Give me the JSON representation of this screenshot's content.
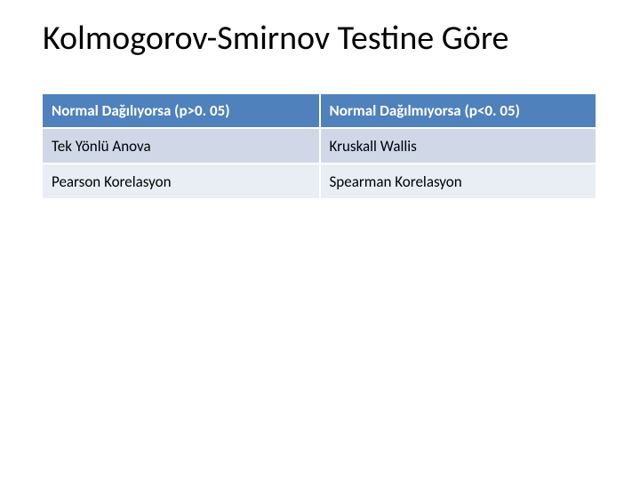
{
  "title": "Kolmogorov-Smirnov Testine Göre",
  "table": {
    "columns": [
      "Normal Dağılıyorsa (p>0. 05)",
      "Normal Dağılmıyorsa (p<0. 05)"
    ],
    "rows": [
      [
        "Tek Yönlü Anova",
        "Kruskall Wallis"
      ],
      [
        "Pearson Korelasyon",
        "Spearman Korelasyon"
      ]
    ],
    "header_bg": "#4f81bd",
    "header_text_color": "#ffffff",
    "row_bg_colors": [
      "#d0d8e8",
      "#e9edf4"
    ],
    "row_text_color": "#000000",
    "border_color": "#ffffff",
    "col_widths": [
      "50%",
      "50%"
    ],
    "header_fontsize": 17,
    "cell_fontsize": 17,
    "header_fontweight": 700,
    "cell_fontweight": 400
  },
  "title_style": {
    "fontsize": 38,
    "color": "#000000",
    "fontweight": 400
  },
  "background_color": "#ffffff"
}
